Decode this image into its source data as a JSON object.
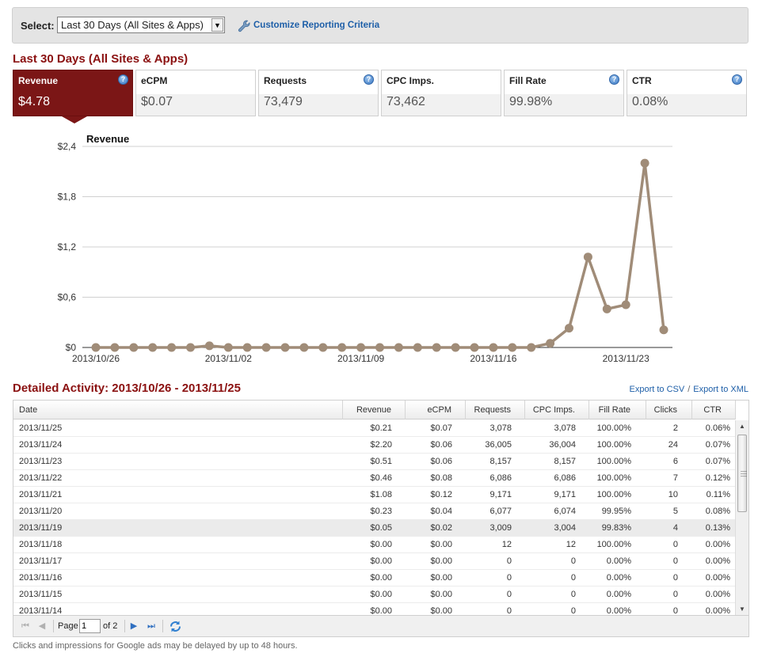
{
  "selector": {
    "label": "Select:",
    "value": "Last 30 Days (All Sites & Apps)",
    "customize_link": "Customize Reporting Criteria"
  },
  "summary": {
    "title": "Last 30 Days (All Sites & Apps)",
    "cards": [
      {
        "label": "Revenue",
        "value": "$4.78",
        "help": "?"
      },
      {
        "label": "eCPM",
        "value": "$0.07",
        "help": ""
      },
      {
        "label": "Requests",
        "value": "73,479",
        "help": "?"
      },
      {
        "label": "CPC Imps.",
        "value": "73,462",
        "help": ""
      },
      {
        "label": "Fill Rate",
        "value": "99.98%",
        "help": "?"
      },
      {
        "label": "CTR",
        "value": "0.08%",
        "help": "?"
      }
    ]
  },
  "chart_data": {
    "type": "line",
    "title": "Revenue",
    "xlabel": "",
    "ylabel": "",
    "ylim": [
      0,
      2.4
    ],
    "y_ticks": [
      "$0",
      "$0,6",
      "$1,2",
      "$1,8",
      "$2,4"
    ],
    "x_tick_labels": [
      "2013/10/26",
      "2013/11/02",
      "2013/11/09",
      "2013/11/16",
      "2013/11/23"
    ],
    "x": [
      "2013/10/26",
      "2013/10/27",
      "2013/10/28",
      "2013/10/29",
      "2013/10/30",
      "2013/10/31",
      "2013/11/01",
      "2013/11/02",
      "2013/11/03",
      "2013/11/04",
      "2013/11/05",
      "2013/11/06",
      "2013/11/07",
      "2013/11/08",
      "2013/11/09",
      "2013/11/10",
      "2013/11/11",
      "2013/11/12",
      "2013/11/13",
      "2013/11/14",
      "2013/11/15",
      "2013/11/16",
      "2013/11/17",
      "2013/11/18",
      "2013/11/19",
      "2013/11/20",
      "2013/11/21",
      "2013/11/22",
      "2013/11/23",
      "2013/11/24",
      "2013/11/25"
    ],
    "values": [
      0,
      0,
      0,
      0,
      0,
      0,
      0.02,
      0,
      0,
      0,
      0,
      0,
      0,
      0,
      0,
      0,
      0,
      0,
      0,
      0,
      0,
      0,
      0,
      0,
      0.05,
      0.23,
      1.08,
      0.46,
      0.51,
      2.2,
      0.21
    ],
    "series_color": "#a08c78",
    "grid": true
  },
  "detail": {
    "title": "Detailed Activity: 2013/10/26 - 2013/11/25",
    "export_csv": "Export to CSV",
    "export_sep": "/",
    "export_xml": "Export to XML",
    "columns": [
      "Date",
      "Revenue",
      "eCPM",
      "Requests",
      "CPC Imps.",
      "Fill Rate",
      "Clicks",
      "CTR"
    ],
    "rows": [
      [
        "2013/11/25",
        "$0.21",
        "$0.07",
        "3,078",
        "3,078",
        "100.00%",
        "2",
        "0.06%"
      ],
      [
        "2013/11/24",
        "$2.20",
        "$0.06",
        "36,005",
        "36,004",
        "100.00%",
        "24",
        "0.07%"
      ],
      [
        "2013/11/23",
        "$0.51",
        "$0.06",
        "8,157",
        "8,157",
        "100.00%",
        "6",
        "0.07%"
      ],
      [
        "2013/11/22",
        "$0.46",
        "$0.08",
        "6,086",
        "6,086",
        "100.00%",
        "7",
        "0.12%"
      ],
      [
        "2013/11/21",
        "$1.08",
        "$0.12",
        "9,171",
        "9,171",
        "100.00%",
        "10",
        "0.11%"
      ],
      [
        "2013/11/20",
        "$0.23",
        "$0.04",
        "6,077",
        "6,074",
        "99.95%",
        "5",
        "0.08%"
      ],
      [
        "2013/11/19",
        "$0.05",
        "$0.02",
        "3,009",
        "3,004",
        "99.83%",
        "4",
        "0.13%"
      ],
      [
        "2013/11/18",
        "$0.00",
        "$0.00",
        "12",
        "12",
        "100.00%",
        "0",
        "0.00%"
      ],
      [
        "2013/11/17",
        "$0.00",
        "$0.00",
        "0",
        "0",
        "0.00%",
        "0",
        "0.00%"
      ],
      [
        "2013/11/16",
        "$0.00",
        "$0.00",
        "0",
        "0",
        "0.00%",
        "0",
        "0.00%"
      ],
      [
        "2013/11/15",
        "$0.00",
        "$0.00",
        "0",
        "0",
        "0.00%",
        "0",
        "0.00%"
      ],
      [
        "2013/11/14",
        "$0.00",
        "$0.00",
        "0",
        "0",
        "0.00%",
        "0",
        "0.00%"
      ]
    ],
    "highlighted_row": 6,
    "pager": {
      "page_label": "Page",
      "page_value": "1",
      "of_label": "of 2"
    }
  },
  "footnote": "Clicks and impressions for Google ads may be delayed by up to 48 hours."
}
